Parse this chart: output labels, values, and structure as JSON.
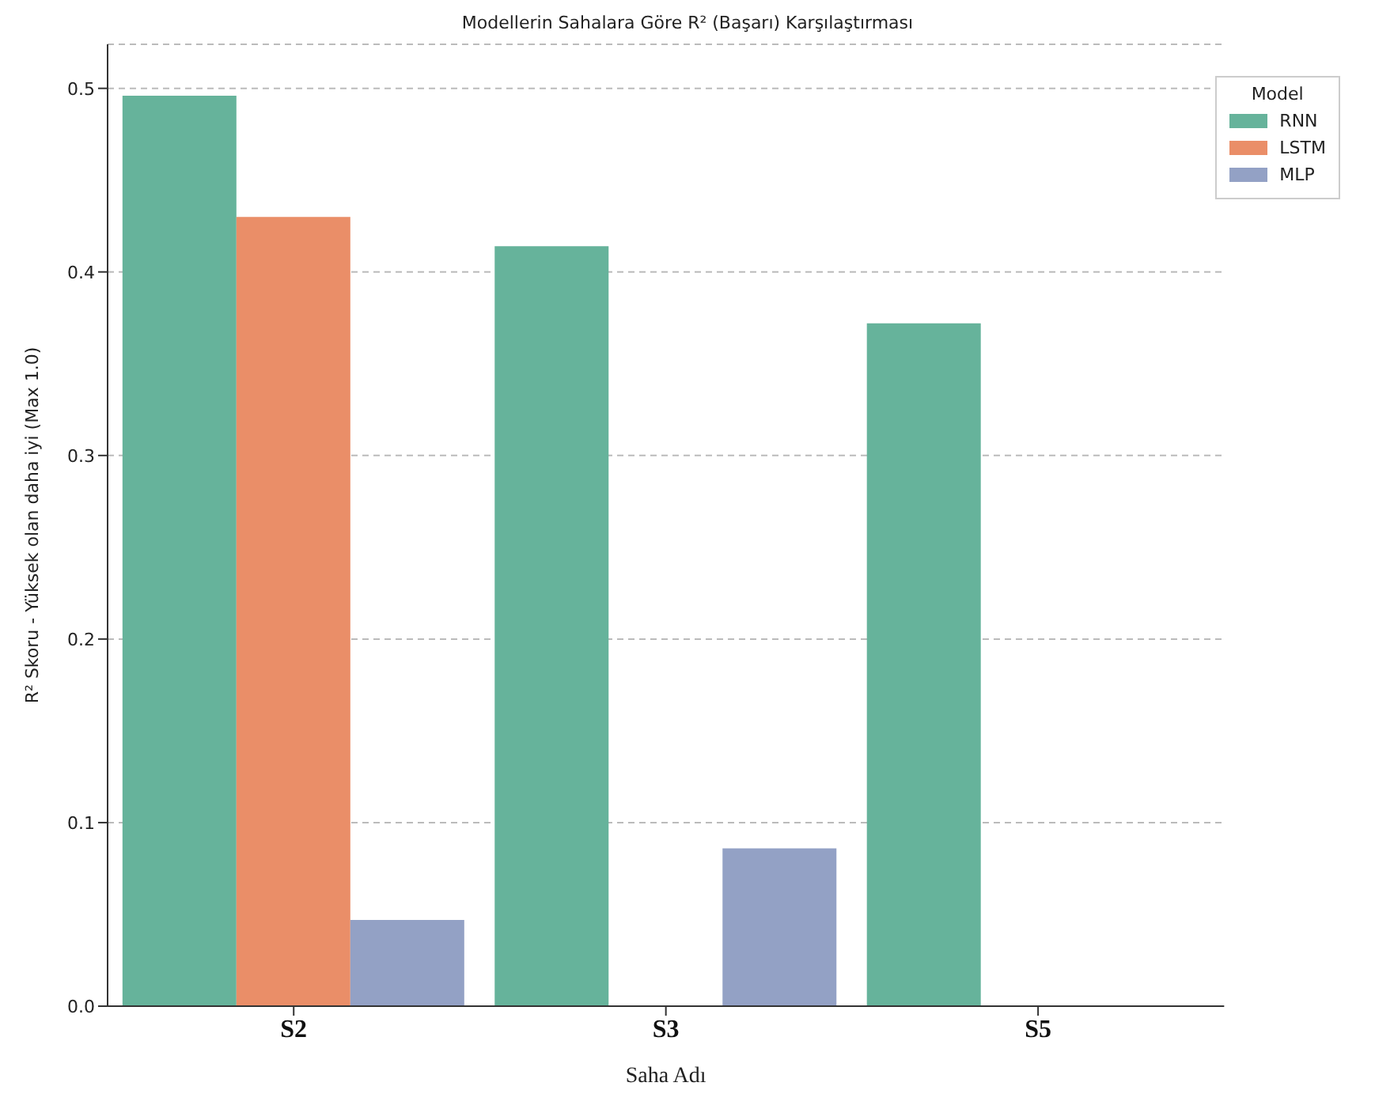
{
  "chart_data": {
    "type": "bar",
    "title": "Modellerin Sahalara Göre R² (Başarı) Karşılaştırması",
    "xlabel": "Saha Adı",
    "ylabel": "R² Skoru - Yüksek olan daha iyi (Max 1.0)",
    "legend_title": "Model",
    "categories": [
      "S2",
      "S3",
      "S5"
    ],
    "series": [
      {
        "name": "RNN",
        "color": "#66b39b",
        "values": [
          0.496,
          0.414,
          0.372
        ]
      },
      {
        "name": "LSTM",
        "color": "#ea8e68",
        "values": [
          0.43,
          null,
          null
        ]
      },
      {
        "name": "MLP",
        "color": "#93a1c5",
        "values": [
          0.047,
          0.086,
          null
        ]
      }
    ],
    "ylim": [
      0,
      0.524
    ],
    "yticks": [
      {
        "value": 0,
        "label": "0.0"
      },
      {
        "value": 0.1,
        "label": "0.1"
      },
      {
        "value": 0.2,
        "label": "0.2"
      },
      {
        "value": 0.3,
        "label": "0.3"
      },
      {
        "value": 0.4,
        "label": "0.4"
      },
      {
        "value": 0.5,
        "label": "0.5"
      }
    ],
    "grid": "y",
    "line_style": "dashed",
    "legend": "top right"
  }
}
